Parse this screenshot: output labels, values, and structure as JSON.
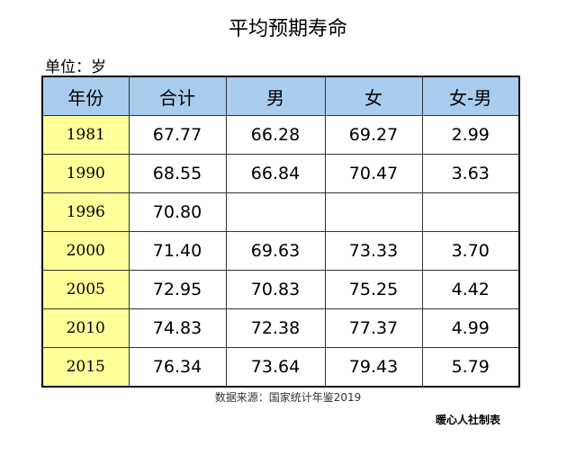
{
  "header": {
    "title": "平均预期寿命",
    "unit": "单位：岁"
  },
  "table": {
    "columns": [
      "年份",
      "合计",
      "男",
      "女",
      "女-男"
    ],
    "rows": [
      [
        "1981",
        "67.77",
        "66.28",
        "69.27",
        "2.99"
      ],
      [
        "1990",
        "68.55",
        "66.84",
        "70.47",
        "3.63"
      ],
      [
        "1996",
        "70.80",
        null,
        null,
        null
      ],
      [
        "2000",
        "71.40",
        "69.63",
        "73.33",
        "3.70"
      ],
      [
        "2005",
        "72.95",
        "70.83",
        "75.25",
        "4.42"
      ],
      [
        "2010",
        "74.83",
        "72.38",
        "77.37",
        "4.99"
      ],
      [
        "2015",
        "76.34",
        "73.64",
        "79.43",
        "5.79"
      ]
    ]
  },
  "footer": {
    "source": "数据来源：国家统计年鉴2019",
    "credit": "暖心人社制表"
  }
}
